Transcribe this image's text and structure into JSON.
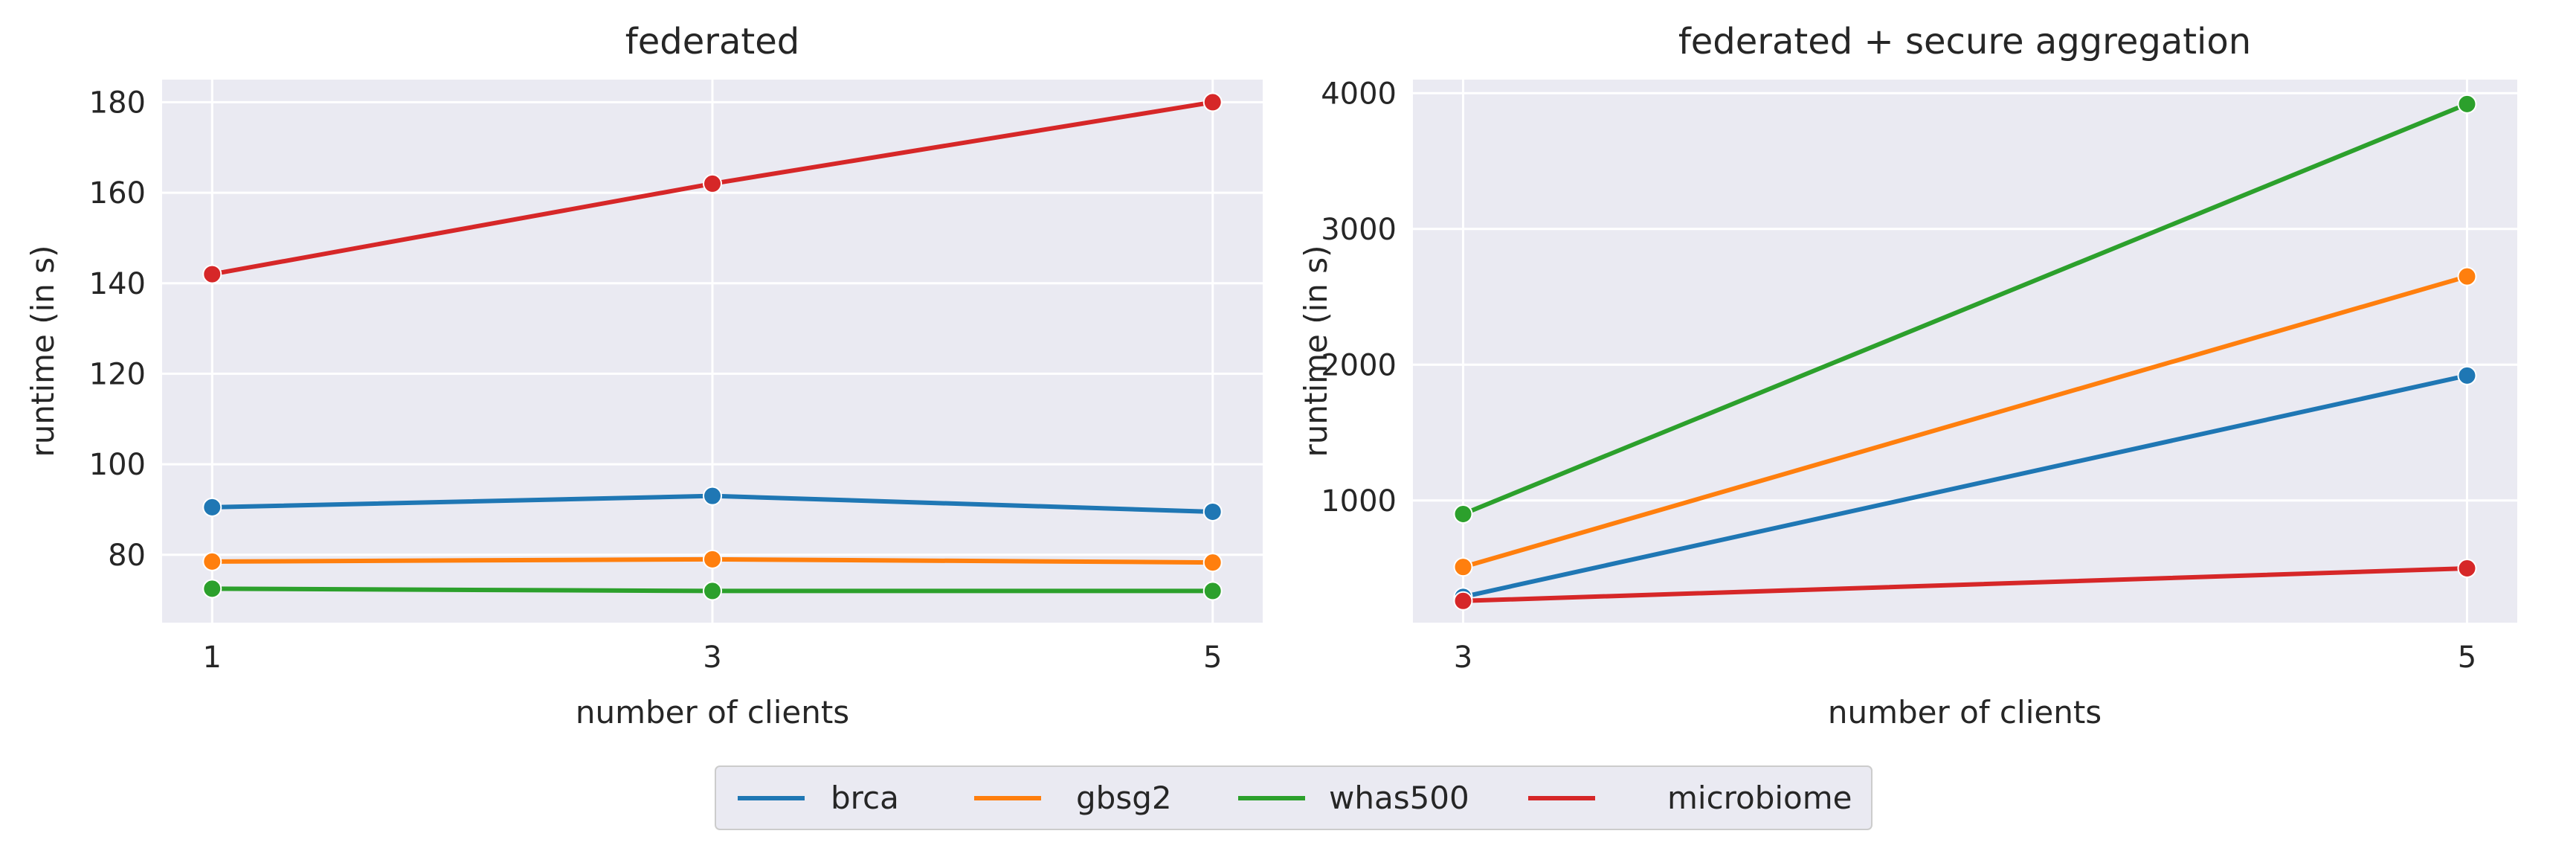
{
  "chart_data": [
    {
      "type": "line",
      "title": "federated",
      "xlabel": "number of clients",
      "ylabel": "runtime (in s)",
      "x": [
        1,
        3,
        5
      ],
      "x_tick_labels": [
        "1",
        "3",
        "5"
      ],
      "y_ticks": [
        80,
        100,
        120,
        140,
        160,
        180
      ],
      "y_tick_labels": [
        "80",
        "100",
        "120",
        "140",
        "160",
        "180"
      ],
      "xlim": [
        0.8,
        5.2
      ],
      "ylim": [
        65,
        185
      ],
      "grid": true,
      "series": [
        {
          "name": "brca",
          "values": [
            90.5,
            93.0,
            89.5
          ]
        },
        {
          "name": "gbsg2",
          "values": [
            78.5,
            79.0,
            78.3
          ]
        },
        {
          "name": "whas500",
          "values": [
            72.5,
            72.0,
            72.0
          ]
        },
        {
          "name": "microbiome",
          "values": [
            142.0,
            162.0,
            180.0
          ]
        }
      ]
    },
    {
      "type": "line",
      "title": "federated + secure aggregation",
      "xlabel": "number of clients",
      "ylabel": "runtime (in s)",
      "x": [
        3,
        5
      ],
      "x_tick_labels": [
        "3",
        "5"
      ],
      "y_ticks": [
        1000,
        2000,
        3000,
        4000
      ],
      "y_tick_labels": [
        "1000",
        "2000",
        "3000",
        "4000"
      ],
      "xlim": [
        2.9,
        5.1
      ],
      "ylim": [
        100,
        4100
      ],
      "grid": true,
      "series": [
        {
          "name": "brca",
          "values": [
            290,
            1920
          ]
        },
        {
          "name": "gbsg2",
          "values": [
            510,
            2650
          ]
        },
        {
          "name": "whas500",
          "values": [
            900,
            3920
          ]
        },
        {
          "name": "microbiome",
          "values": [
            260,
            500
          ]
        }
      ]
    }
  ],
  "legend": {
    "placement": "bottom-center",
    "entries": [
      "brca",
      "gbsg2",
      "whas500",
      "microbiome"
    ]
  },
  "colors": {
    "brca": "#1f77b4",
    "gbsg2": "#ff7f0e",
    "whas500": "#2ca02c",
    "microbiome": "#d62728",
    "plot_background": "#eaeaf2",
    "grid": "#ffffff",
    "text": "#262626"
  }
}
